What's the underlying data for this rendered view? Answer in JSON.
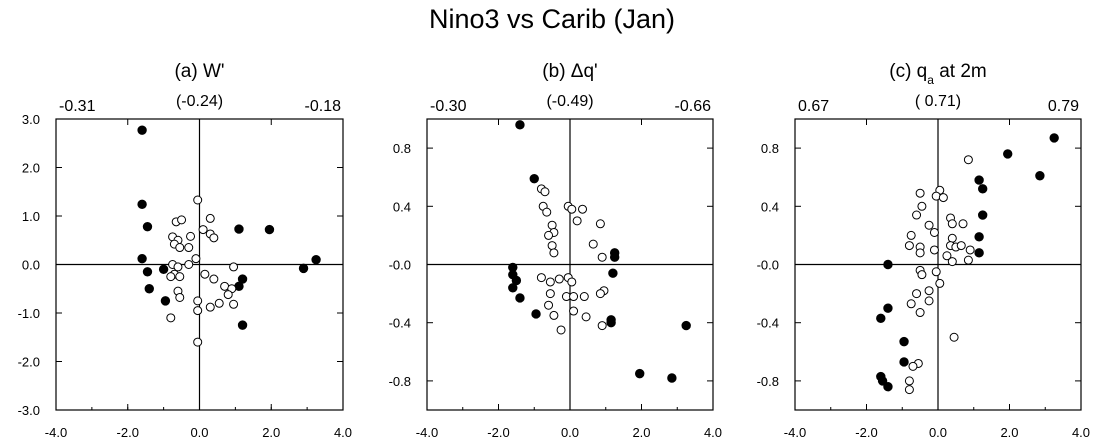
{
  "title": "Nino3 vs Carib (Jan)",
  "chart_data": [
    {
      "type": "scatter",
      "title": "(a) W'",
      "title_parts": {
        "main": "(a) W'",
        "sub": "",
        "tail": ""
      },
      "top_labels": {
        "left": "-0.31",
        "center": "(-0.24)",
        "right": "-0.18"
      },
      "xlim": [
        -4.0,
        4.0
      ],
      "ylim": [
        -3.0,
        3.0
      ],
      "xticks": [
        -4.0,
        -2.0,
        0.0,
        2.0,
        4.0
      ],
      "xtick_labels": [
        "-4.0",
        "-2.0",
        "0.0",
        "2.0",
        "4.0"
      ],
      "yticks": [
        -3.0,
        -2.0,
        -1.0,
        0.0,
        1.0,
        2.0,
        3.0
      ],
      "ytick_labels": [
        "-3.0",
        "-2.0",
        "-1.0",
        "0.0",
        "1.0",
        "2.0",
        "3.0"
      ],
      "grid": false,
      "series": [
        {
          "marker": "filled",
          "points": [
            [
              -1.6,
              2.77
            ],
            [
              -1.6,
              1.24
            ],
            [
              -1.45,
              0.78
            ],
            [
              -1.6,
              0.12
            ],
            [
              -1.45,
              -0.15
            ],
            [
              -1.4,
              -0.5
            ],
            [
              -1.0,
              -0.1
            ],
            [
              -0.95,
              -0.75
            ],
            [
              1.1,
              0.73
            ],
            [
              1.95,
              0.72
            ],
            [
              1.2,
              -0.3
            ],
            [
              1.1,
              -0.45
            ],
            [
              1.2,
              -1.25
            ],
            [
              2.9,
              -0.08
            ],
            [
              3.25,
              0.1
            ]
          ]
        },
        {
          "marker": "open",
          "points": [
            [
              -0.05,
              1.33
            ],
            [
              -0.75,
              0.57
            ],
            [
              -0.6,
              0.5
            ],
            [
              -0.7,
              0.42
            ],
            [
              -0.55,
              0.35
            ],
            [
              -0.65,
              0.88
            ],
            [
              -0.5,
              0.92
            ],
            [
              -0.25,
              0.58
            ],
            [
              0.3,
              0.95
            ],
            [
              0.1,
              0.72
            ],
            [
              0.3,
              0.63
            ],
            [
              0.4,
              0.55
            ],
            [
              -0.3,
              0.35
            ],
            [
              -0.1,
              0.12
            ],
            [
              -0.75,
              0.0
            ],
            [
              -0.6,
              -0.05
            ],
            [
              -0.7,
              -0.2
            ],
            [
              -0.8,
              -0.25
            ],
            [
              -0.55,
              -0.25
            ],
            [
              -0.6,
              -0.55
            ],
            [
              -0.55,
              -0.68
            ],
            [
              -0.3,
              0.0
            ],
            [
              0.15,
              -0.2
            ],
            [
              0.4,
              -0.3
            ],
            [
              0.7,
              -0.45
            ],
            [
              0.9,
              -0.5
            ],
            [
              0.8,
              -0.62
            ],
            [
              0.95,
              -0.05
            ],
            [
              0.55,
              -0.8
            ],
            [
              0.95,
              -0.82
            ],
            [
              -0.05,
              -0.75
            ],
            [
              0.3,
              -0.88
            ],
            [
              -0.05,
              -0.95
            ],
            [
              -0.8,
              -1.1
            ],
            [
              -0.05,
              -1.6
            ]
          ]
        }
      ]
    },
    {
      "type": "scatter",
      "title": "(b) Δq'",
      "title_parts": {
        "main": "(b) Δq'",
        "sub": "",
        "tail": ""
      },
      "top_labels": {
        "left": "-0.30",
        "center": "(-0.49)",
        "right": "-0.66"
      },
      "xlim": [
        -4.0,
        4.0
      ],
      "ylim": [
        -1.0,
        1.0
      ],
      "xticks": [
        -4.0,
        -2.0,
        0.0,
        2.0,
        4.0
      ],
      "xtick_labels": [
        "-4.0",
        "-2.0",
        "0.0",
        "2.0",
        "4.0"
      ],
      "yticks": [
        -0.8,
        -0.4,
        0.0,
        0.4,
        0.8
      ],
      "ytick_labels": [
        "-0.8",
        "-0.4",
        "-0.0",
        "0.4",
        "0.8"
      ],
      "grid": false,
      "series": [
        {
          "marker": "filled",
          "points": [
            [
              -1.4,
              0.96
            ],
            [
              -1.0,
              0.59
            ],
            [
              -1.6,
              -0.02
            ],
            [
              -1.6,
              -0.07
            ],
            [
              -1.5,
              -0.11
            ],
            [
              -1.6,
              -0.16
            ],
            [
              -1.4,
              -0.23
            ],
            [
              -0.95,
              -0.34
            ],
            [
              1.25,
              0.08
            ],
            [
              1.25,
              0.05
            ],
            [
              1.2,
              -0.06
            ],
            [
              1.15,
              -0.38
            ],
            [
              1.15,
              -0.4
            ],
            [
              1.95,
              -0.75
            ],
            [
              2.85,
              -0.78
            ],
            [
              3.25,
              -0.42
            ]
          ]
        },
        {
          "marker": "open",
          "points": [
            [
              -0.8,
              0.52
            ],
            [
              -0.7,
              0.5
            ],
            [
              -0.75,
              0.4
            ],
            [
              -0.65,
              0.36
            ],
            [
              -0.5,
              0.27
            ],
            [
              -0.45,
              0.22
            ],
            [
              -0.6,
              0.2
            ],
            [
              -0.5,
              0.13
            ],
            [
              -0.45,
              0.08
            ],
            [
              -0.05,
              0.4
            ],
            [
              0.05,
              0.38
            ],
            [
              0.35,
              0.38
            ],
            [
              0.2,
              0.3
            ],
            [
              0.85,
              0.28
            ],
            [
              0.65,
              0.14
            ],
            [
              0.9,
              0.05
            ],
            [
              -0.8,
              -0.09
            ],
            [
              -0.55,
              -0.12
            ],
            [
              -0.3,
              -0.1
            ],
            [
              -0.05,
              -0.09
            ],
            [
              0.05,
              -0.12
            ],
            [
              -0.55,
              -0.2
            ],
            [
              -0.1,
              -0.22
            ],
            [
              0.1,
              -0.22
            ],
            [
              0.4,
              -0.22
            ],
            [
              0.95,
              -0.18
            ],
            [
              0.85,
              -0.2
            ],
            [
              -0.6,
              -0.28
            ],
            [
              -0.45,
              -0.35
            ],
            [
              0.1,
              -0.32
            ],
            [
              0.45,
              -0.36
            ],
            [
              0.9,
              -0.42
            ],
            [
              -0.25,
              -0.45
            ]
          ]
        }
      ]
    },
    {
      "type": "scatter",
      "title": "(c) q'a at 2m",
      "title_parts": {
        "main": "(c) q",
        "sub": "a",
        "tail": " at 2m"
      },
      "top_labels": {
        "left": "0.67",
        "center": "( 0.71)",
        "right": "0.79"
      },
      "xlim": [
        -4.0,
        4.0
      ],
      "ylim": [
        -1.0,
        1.0
      ],
      "xticks": [
        -4.0,
        -2.0,
        0.0,
        2.0,
        4.0
      ],
      "xtick_labels": [
        "-4.0",
        "-2.0",
        "0.0",
        "2.0",
        "4.0"
      ],
      "yticks": [
        -0.8,
        -0.4,
        0.0,
        0.4,
        0.8
      ],
      "ytick_labels": [
        "-0.8",
        "-0.4",
        "-0.0",
        "0.4",
        "0.8"
      ],
      "grid": false,
      "series": [
        {
          "marker": "filled",
          "points": [
            [
              3.25,
              0.87
            ],
            [
              2.85,
              0.61
            ],
            [
              1.95,
              0.76
            ],
            [
              1.15,
              0.58
            ],
            [
              1.25,
              0.52
            ],
            [
              1.25,
              0.34
            ],
            [
              1.15,
              0.19
            ],
            [
              1.15,
              0.08
            ],
            [
              -1.4,
              0.0
            ],
            [
              -1.4,
              -0.3
            ],
            [
              -1.6,
              -0.37
            ],
            [
              -0.95,
              -0.53
            ],
            [
              -0.95,
              -0.67
            ],
            [
              -1.6,
              -0.77
            ],
            [
              -1.55,
              -0.8
            ],
            [
              -1.4,
              -0.84
            ]
          ]
        },
        {
          "marker": "open",
          "points": [
            [
              0.85,
              0.72
            ],
            [
              0.05,
              0.51
            ],
            [
              -0.05,
              0.47
            ],
            [
              -0.5,
              0.49
            ],
            [
              -0.45,
              0.4
            ],
            [
              -0.6,
              0.34
            ],
            [
              0.15,
              0.46
            ],
            [
              0.35,
              0.32
            ],
            [
              0.4,
              0.28
            ],
            [
              -0.25,
              0.27
            ],
            [
              -0.1,
              0.22
            ],
            [
              0.4,
              0.18
            ],
            [
              0.7,
              0.28
            ],
            [
              0.35,
              0.13
            ],
            [
              0.5,
              0.12
            ],
            [
              0.65,
              0.13
            ],
            [
              0.9,
              0.1
            ],
            [
              -0.75,
              0.2
            ],
            [
              -0.8,
              0.13
            ],
            [
              -0.5,
              0.12
            ],
            [
              -0.5,
              0.08
            ],
            [
              -0.1,
              0.1
            ],
            [
              0.25,
              0.06
            ],
            [
              0.4,
              0.02
            ],
            [
              0.85,
              0.03
            ],
            [
              -0.05,
              -0.05
            ],
            [
              -0.5,
              -0.04
            ],
            [
              -0.45,
              -0.07
            ],
            [
              0.05,
              -0.13
            ],
            [
              -0.25,
              -0.18
            ],
            [
              -0.6,
              -0.2
            ],
            [
              -0.75,
              -0.27
            ],
            [
              -0.25,
              -0.25
            ],
            [
              -0.5,
              -0.33
            ],
            [
              0.45,
              -0.5
            ],
            [
              -0.55,
              -0.68
            ],
            [
              -0.7,
              -0.7
            ],
            [
              -0.8,
              -0.8
            ],
            [
              -0.8,
              -0.86
            ]
          ]
        }
      ]
    }
  ]
}
